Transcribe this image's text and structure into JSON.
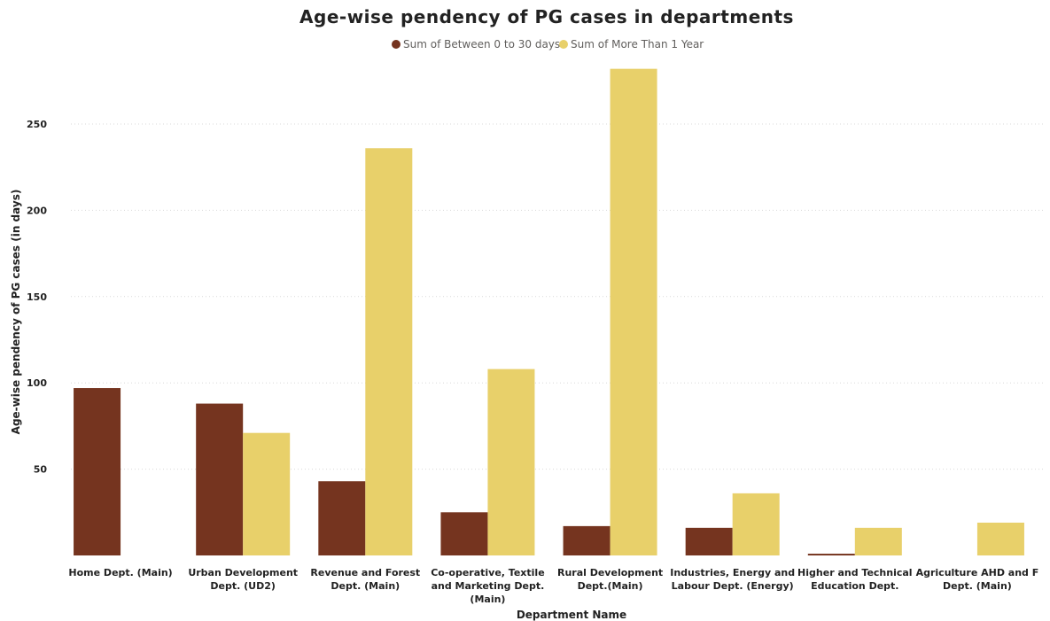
{
  "chart_data": {
    "type": "bar",
    "title": "Age-wise pendency of PG cases in departments",
    "xlabel": "Department Name",
    "ylabel": "Age-wise pendency of PG cases (in days)",
    "ylim": [
      0,
      290
    ],
    "yticks": [
      50,
      100,
      150,
      200,
      250
    ],
    "grid": true,
    "legend_position": "top-center",
    "categories": [
      [
        "Home Dept. (Main)"
      ],
      [
        "Urban Development",
        "Dept. (UD2)"
      ],
      [
        "Revenue and Forest",
        "Dept. (Main)"
      ],
      [
        "Co-operative, Textile",
        "and Marketing Dept.",
        "(Main)"
      ],
      [
        "Rural Development",
        "Dept.(Main)"
      ],
      [
        "Industries, Energy and",
        "Labour Dept. (Energy)"
      ],
      [
        "Higher and Technical",
        "Education Dept."
      ],
      [
        "Agriculture AHD and F",
        "Dept. (Main)"
      ]
    ],
    "series": [
      {
        "name": "Sum of Between 0 to 30 days",
        "color": "#75341f",
        "values": [
          97,
          88,
          43,
          25,
          17,
          16,
          1,
          null
        ]
      },
      {
        "name": "Sum of More Than 1 Year",
        "color": "#e8d06a",
        "values": [
          null,
          71,
          236,
          108,
          282,
          36,
          16,
          19
        ]
      }
    ]
  }
}
